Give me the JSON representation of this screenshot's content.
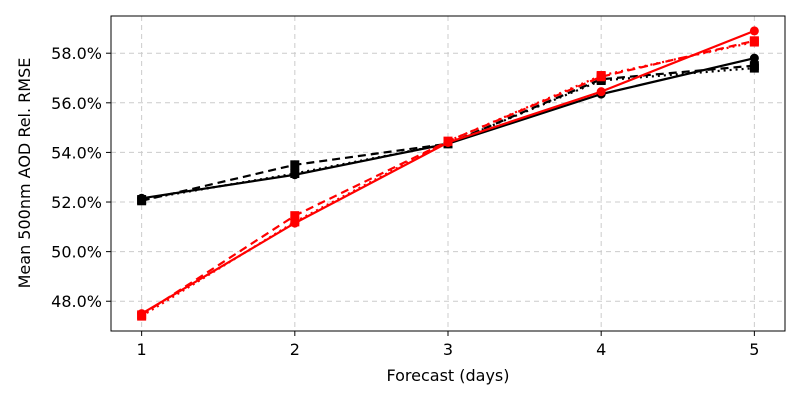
{
  "chart_data": {
    "type": "line",
    "xlabel": "Forecast (days)",
    "ylabel": "Mean 500nm AOD Rel. RMSE",
    "x": [
      1,
      2,
      3,
      4,
      5
    ],
    "x_ticks": [
      1,
      2,
      3,
      4,
      5
    ],
    "y_ticks": [
      48.0,
      50.0,
      52.0,
      54.0,
      56.0,
      58.0
    ],
    "y_tick_labels": [
      "48.0%",
      "50.0%",
      "52.0%",
      "54.0%",
      "56.0%",
      "58.0%"
    ],
    "xlim": [
      0.8,
      5.2
    ],
    "ylim": [
      46.8,
      59.5
    ],
    "grid": true,
    "series": [
      {
        "color": "#000000",
        "linestyle": "solid",
        "marker": "circle",
        "values": [
          52.15,
          53.1,
          54.35,
          56.35,
          57.8
        ]
      },
      {
        "color": "#000000",
        "linestyle": "dashed",
        "marker": "square",
        "values": [
          52.05,
          53.5,
          54.35,
          56.95,
          57.5
        ]
      },
      {
        "color": "#000000",
        "linestyle": "dotted",
        "marker": "square",
        "values": [
          52.1,
          53.15,
          54.35,
          56.9,
          57.4
        ]
      },
      {
        "color": "#ff0000",
        "linestyle": "solid",
        "marker": "circle",
        "values": [
          47.5,
          51.15,
          54.4,
          56.45,
          58.9
        ]
      },
      {
        "color": "#ff0000",
        "linestyle": "dashed",
        "marker": "square",
        "values": [
          47.45,
          51.45,
          54.45,
          57.05,
          58.5
        ]
      },
      {
        "color": "#ff0000",
        "linestyle": "dotted",
        "marker": "square",
        "values": [
          47.4,
          51.2,
          54.45,
          57.1,
          58.45
        ]
      }
    ]
  }
}
